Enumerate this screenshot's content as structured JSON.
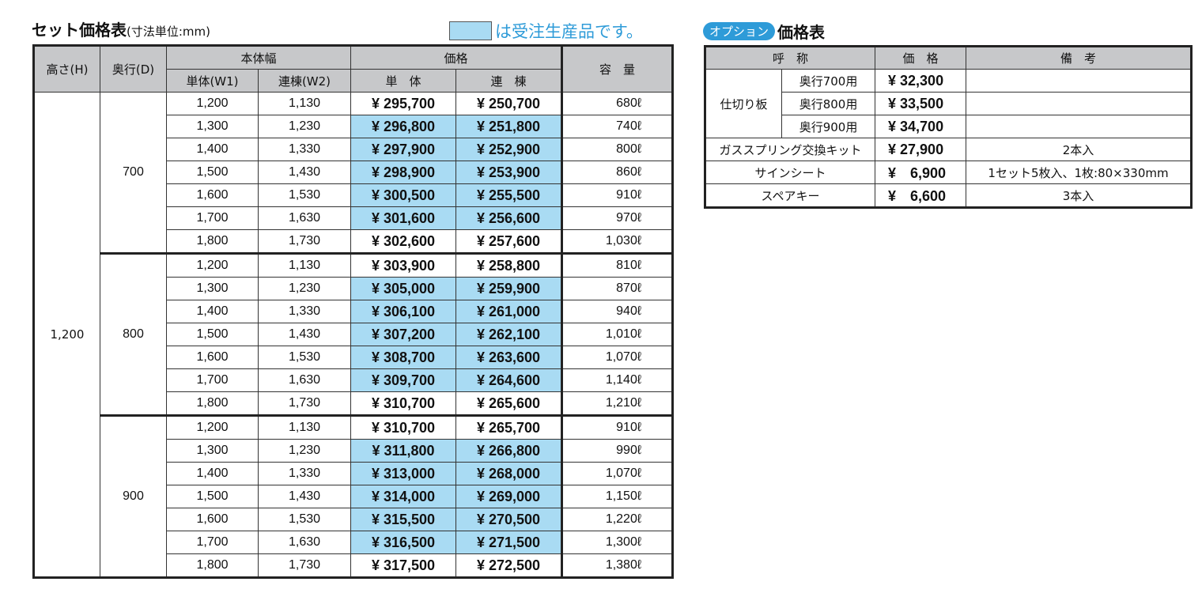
{
  "main": {
    "title": "セット価格表",
    "title_unit": "(寸法単位:mm)",
    "legend_text": "は受注生産品です。",
    "legend_color": "#a9dbf3",
    "headers": {
      "height": "高さ(H)",
      "depth": "奥行(D)",
      "body_width": "本体幅",
      "w1": "単体(W1)",
      "w2": "連棟(W2)",
      "price": "価格",
      "single": "単　体",
      "linked": "連　棟",
      "capacity": "容　量"
    },
    "height_value": "1,200",
    "groups": [
      {
        "depth": "700",
        "rows": [
          {
            "w1": "1,200",
            "w2": "1,130",
            "single": "¥ 295,700",
            "linked": "¥ 250,700",
            "cap": "680ℓ",
            "order": false
          },
          {
            "w1": "1,300",
            "w2": "1,230",
            "single": "¥ 296,800",
            "linked": "¥ 251,800",
            "cap": "740ℓ",
            "order": true
          },
          {
            "w1": "1,400",
            "w2": "1,330",
            "single": "¥ 297,900",
            "linked": "¥ 252,900",
            "cap": "800ℓ",
            "order": true
          },
          {
            "w1": "1,500",
            "w2": "1,430",
            "single": "¥ 298,900",
            "linked": "¥ 253,900",
            "cap": "860ℓ",
            "order": true
          },
          {
            "w1": "1,600",
            "w2": "1,530",
            "single": "¥ 300,500",
            "linked": "¥ 255,500",
            "cap": "910ℓ",
            "order": true
          },
          {
            "w1": "1,700",
            "w2": "1,630",
            "single": "¥ 301,600",
            "linked": "¥ 256,600",
            "cap": "970ℓ",
            "order": true
          },
          {
            "w1": "1,800",
            "w2": "1,730",
            "single": "¥ 302,600",
            "linked": "¥ 257,600",
            "cap": "1,030ℓ",
            "order": false
          }
        ]
      },
      {
        "depth": "800",
        "rows": [
          {
            "w1": "1,200",
            "w2": "1,130",
            "single": "¥ 303,900",
            "linked": "¥ 258,800",
            "cap": "810ℓ",
            "order": false
          },
          {
            "w1": "1,300",
            "w2": "1,230",
            "single": "¥ 305,000",
            "linked": "¥ 259,900",
            "cap": "870ℓ",
            "order": true
          },
          {
            "w1": "1,400",
            "w2": "1,330",
            "single": "¥ 306,100",
            "linked": "¥ 261,000",
            "cap": "940ℓ",
            "order": true
          },
          {
            "w1": "1,500",
            "w2": "1,430",
            "single": "¥ 307,200",
            "linked": "¥ 262,100",
            "cap": "1,010ℓ",
            "order": true
          },
          {
            "w1": "1,600",
            "w2": "1,530",
            "single": "¥ 308,700",
            "linked": "¥ 263,600",
            "cap": "1,070ℓ",
            "order": true
          },
          {
            "w1": "1,700",
            "w2": "1,630",
            "single": "¥ 309,700",
            "linked": "¥ 264,600",
            "cap": "1,140ℓ",
            "order": true
          },
          {
            "w1": "1,800",
            "w2": "1,730",
            "single": "¥ 310,700",
            "linked": "¥ 265,600",
            "cap": "1,210ℓ",
            "order": false
          }
        ]
      },
      {
        "depth": "900",
        "rows": [
          {
            "w1": "1,200",
            "w2": "1,130",
            "single": "¥ 310,700",
            "linked": "¥ 265,700",
            "cap": "910ℓ",
            "order": false
          },
          {
            "w1": "1,300",
            "w2": "1,230",
            "single": "¥ 311,800",
            "linked": "¥ 266,800",
            "cap": "990ℓ",
            "order": true
          },
          {
            "w1": "1,400",
            "w2": "1,330",
            "single": "¥ 313,000",
            "linked": "¥ 268,000",
            "cap": "1,070ℓ",
            "order": true
          },
          {
            "w1": "1,500",
            "w2": "1,430",
            "single": "¥ 314,000",
            "linked": "¥ 269,000",
            "cap": "1,150ℓ",
            "order": true
          },
          {
            "w1": "1,600",
            "w2": "1,530",
            "single": "¥ 315,500",
            "linked": "¥ 270,500",
            "cap": "1,220ℓ",
            "order": true
          },
          {
            "w1": "1,700",
            "w2": "1,630",
            "single": "¥ 316,500",
            "linked": "¥ 271,500",
            "cap": "1,300ℓ",
            "order": true
          },
          {
            "w1": "1,800",
            "w2": "1,730",
            "single": "¥ 317,500",
            "linked": "¥ 272,500",
            "cap": "1,380ℓ",
            "order": false
          }
        ]
      }
    ]
  },
  "options": {
    "badge": "オプション",
    "title": "価格表",
    "headers": {
      "name": "呼　称",
      "price": "価　格",
      "note": "備　考"
    },
    "partition": {
      "label": "仕切り板",
      "rows": [
        {
          "name": "奥行700用",
          "price": "¥ 32,300",
          "note": ""
        },
        {
          "name": "奥行800用",
          "price": "¥ 33,500",
          "note": ""
        },
        {
          "name": "奥行900用",
          "price": "¥ 34,700",
          "note": ""
        }
      ]
    },
    "items": [
      {
        "name": "ガススプリング交換キット",
        "price": "¥ 27,900",
        "note": "2本入"
      },
      {
        "name": "サインシート",
        "price": "¥　6,900",
        "note": "1セット5枚入、1枚:80×330mm"
      },
      {
        "name": "スペアキー",
        "price": "¥　6,600",
        "note": "3本入"
      }
    ]
  }
}
